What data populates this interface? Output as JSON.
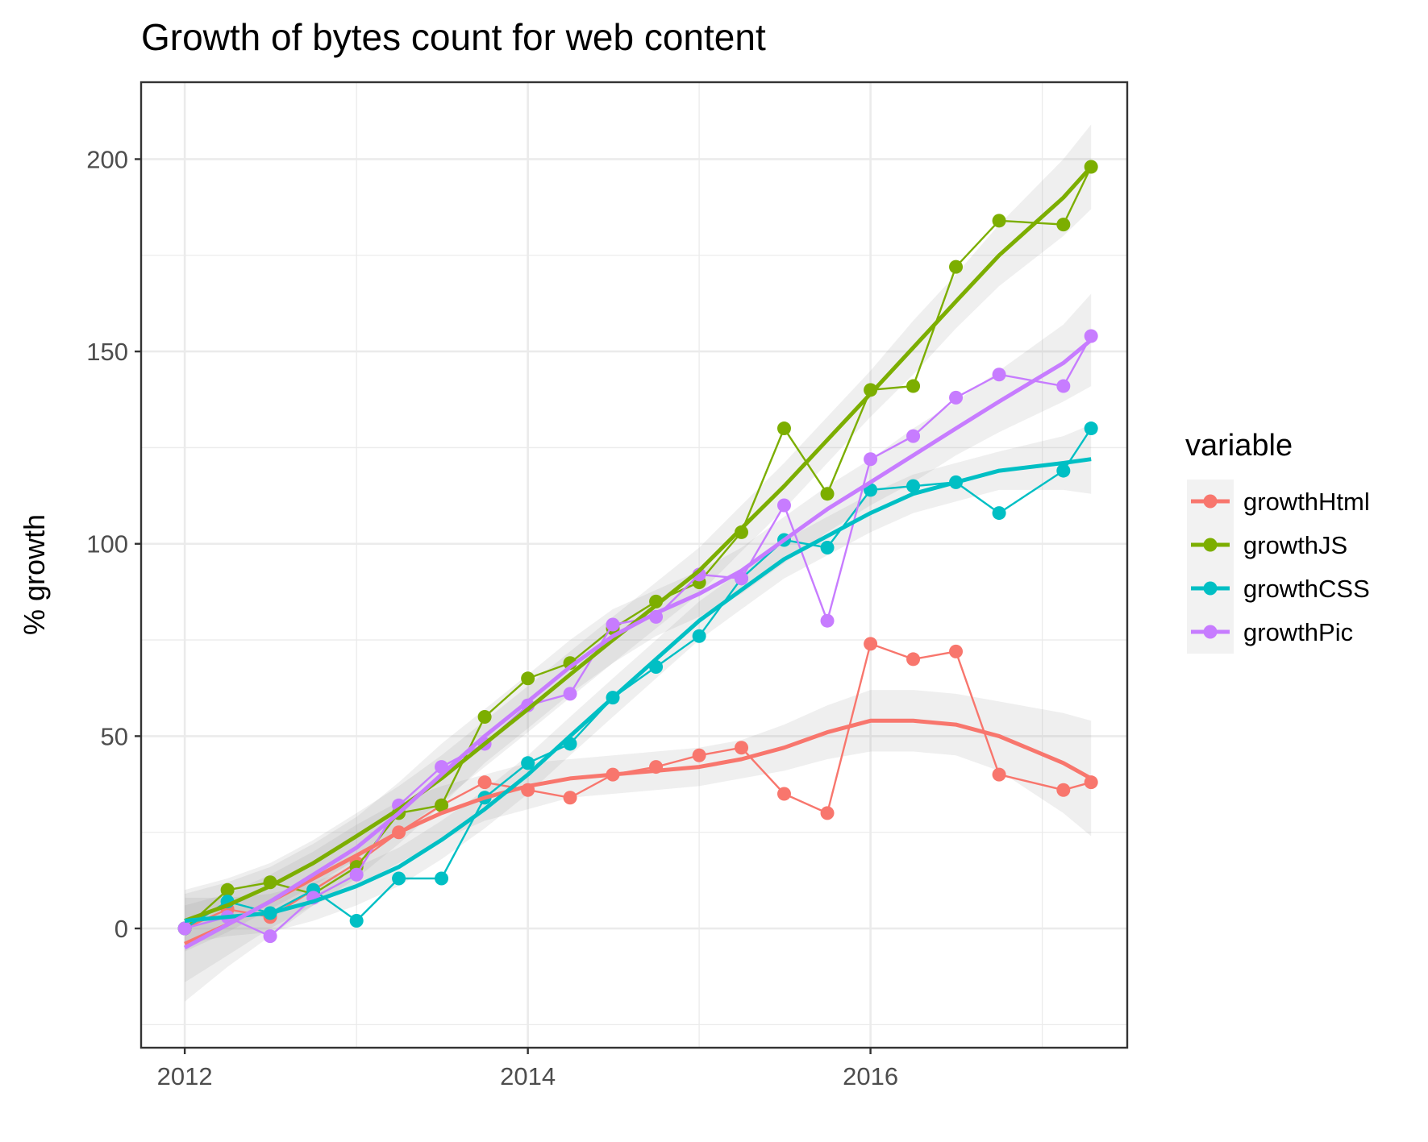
{
  "chart_data": {
    "type": "line",
    "title": "Growth of bytes count for web content",
    "xlabel": "",
    "ylabel": "% growth",
    "xlim": [
      "2011-09-30",
      "2017-07-01"
    ],
    "ylim": [
      -31,
      220
    ],
    "x_ticks": [
      {
        "value": "2012-01-01",
        "label": "2012"
      },
      {
        "value": "2014-01-01",
        "label": "2014"
      },
      {
        "value": "2016-01-01",
        "label": "2016"
      }
    ],
    "x_minor_ticks": [
      "2013-01-01",
      "2015-01-01",
      "2017-01-01"
    ],
    "y_ticks": [
      0,
      50,
      100,
      150,
      200
    ],
    "y_minor_ticks": [
      -25,
      25,
      75,
      125,
      175
    ],
    "grid": true,
    "legend": {
      "title": "variable",
      "position": "right"
    },
    "x": [
      "2012-01-01",
      "2012-04-01",
      "2012-07-01",
      "2012-10-01",
      "2013-01-01",
      "2013-04-01",
      "2013-07-01",
      "2013-10-01",
      "2014-01-01",
      "2014-04-01",
      "2014-07-01",
      "2014-10-01",
      "2015-01-01",
      "2015-04-01",
      "2015-07-01",
      "2015-10-01",
      "2016-01-01",
      "2016-04-01",
      "2016-07-01",
      "2016-10-01",
      "2017-02-15",
      "2017-04-15"
    ],
    "series": [
      {
        "name": "growthHtml",
        "color": "#F8766D",
        "values": [
          0,
          5,
          3,
          10,
          17,
          25,
          32,
          38,
          36,
          34,
          40,
          42,
          45,
          47,
          35,
          30,
          74,
          70,
          72,
          40,
          36,
          38
        ],
        "smooth": [
          -4,
          1,
          7,
          13,
          19,
          25,
          30,
          34,
          37,
          39,
          40,
          41,
          42,
          44,
          47,
          51,
          54,
          54,
          53,
          50,
          43,
          39
        ],
        "band": [
          10,
          8,
          7,
          7,
          8,
          8,
          7,
          6,
          6,
          5,
          5,
          5,
          5,
          5,
          6,
          7,
          8,
          8,
          8,
          9,
          13,
          15
        ]
      },
      {
        "name": "growthJS",
        "color": "#7CAE00",
        "values": [
          0,
          10,
          12,
          9,
          16,
          30,
          32,
          55,
          65,
          69,
          78,
          85,
          90,
          103,
          130,
          113,
          140,
          141,
          172,
          184,
          183,
          198
        ],
        "smooth": [
          2,
          6,
          11,
          17,
          24,
          31,
          39,
          48,
          57,
          66,
          75,
          84,
          93,
          104,
          115,
          127,
          139,
          151,
          163,
          175,
          190,
          198
        ],
        "band": [
          8,
          7,
          6,
          6,
          6,
          6,
          6,
          6,
          6,
          6,
          6,
          6,
          6,
          6,
          6,
          6,
          6,
          7,
          7,
          8,
          10,
          11
        ]
      },
      {
        "name": "growthCSS",
        "color": "#00BFC4",
        "values": [
          0,
          7,
          4,
          10,
          2,
          13,
          13,
          34,
          43,
          48,
          60,
          68,
          76,
          91,
          101,
          99,
          114,
          115,
          116,
          108,
          119,
          130
        ],
        "smooth": [
          2,
          3,
          4,
          7,
          11,
          16,
          23,
          31,
          40,
          50,
          60,
          70,
          80,
          88,
          96,
          102,
          108,
          113,
          116,
          119,
          121,
          122
        ],
        "band": [
          6,
          5,
          5,
          5,
          5,
          5,
          5,
          5,
          5,
          5,
          5,
          5,
          5,
          5,
          5,
          5,
          5,
          5,
          5,
          5,
          7,
          9
        ]
      },
      {
        "name": "growthPic",
        "color": "#C77CFF",
        "values": [
          0,
          3,
          -2,
          8,
          14,
          32,
          42,
          48,
          58,
          61,
          79,
          81,
          92,
          91,
          110,
          80,
          122,
          128,
          138,
          144,
          141,
          154
        ],
        "smooth": [
          -5,
          1,
          7,
          14,
          21,
          30,
          40,
          50,
          59,
          68,
          76,
          82,
          87,
          93,
          101,
          109,
          116,
          123,
          130,
          137,
          147,
          153
        ],
        "band": [
          14,
          11,
          9,
          8,
          8,
          8,
          8,
          7,
          7,
          7,
          7,
          6,
          6,
          6,
          6,
          6,
          6,
          7,
          7,
          8,
          10,
          12
        ]
      }
    ]
  }
}
